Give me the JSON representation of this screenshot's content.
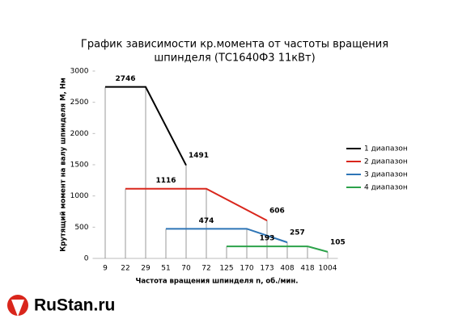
{
  "chart_data": {
    "type": "line",
    "title": [
      "График зависимости кр.момента от частоты вращения",
      "шпинделя (ТС1640Ф3 11кВт)"
    ],
    "x_label": "Частота вращения шпинделя n, об./мин.",
    "y_label": "Крутящий момент на валу шпинделя М, Нм",
    "categories": [
      "9",
      "22",
      "29",
      "51",
      "70",
      "72",
      "125",
      "170",
      "173",
      "408",
      "418",
      "1004"
    ],
    "ylim": [
      0,
      3000
    ],
    "yticks": [
      0,
      500,
      1000,
      1500,
      2000,
      2500,
      3000
    ],
    "legend": "right",
    "series": [
      {
        "name": "1 диапазон",
        "color": "#000000",
        "x": [
          "9",
          "29",
          "70"
        ],
        "values": [
          2746,
          2746,
          1491
        ],
        "value_labels": [
          "2746",
          null,
          "1491"
        ]
      },
      {
        "name": "2 диапазон",
        "color": "#d9261c",
        "x": [
          "22",
          "72",
          "173"
        ],
        "values": [
          1116,
          1116,
          606
        ],
        "value_labels": [
          "1116",
          null,
          "606"
        ]
      },
      {
        "name": "3 диапазон",
        "color": "#2e75b6",
        "x": [
          "51",
          "170",
          "408"
        ],
        "values": [
          474,
          474,
          257
        ],
        "value_labels": [
          "474",
          null,
          "257"
        ]
      },
      {
        "name": "4 диапазон",
        "color": "#2ca24a",
        "x": [
          "125",
          "418",
          "1004"
        ],
        "values": [
          193,
          193,
          105
        ],
        "value_labels": [
          "193",
          null,
          "105"
        ]
      }
    ]
  },
  "logo": {
    "text": "RuStan.ru"
  }
}
